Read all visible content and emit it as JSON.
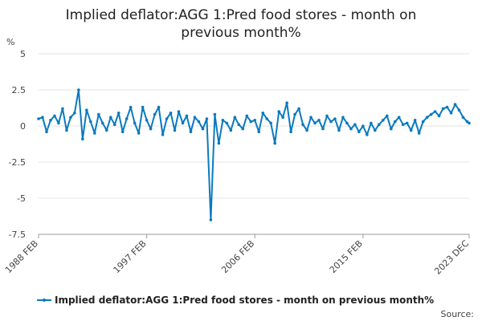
{
  "chart_data": {
    "type": "line",
    "title_lines": [
      "Implied deflator:AGG 1:Pred food stores - month on",
      "previous month%"
    ],
    "ylabel": "%",
    "ylim": [
      -7.5,
      5
    ],
    "yticks": [
      5,
      2.5,
      0,
      -2.5,
      -5,
      -7.5
    ],
    "ytick_labels": [
      "5",
      "2.5",
      "0",
      "-2.5",
      "-5",
      "-7.5"
    ],
    "xlim": [
      "1988 FEB",
      "2023 DEC"
    ],
    "xtick_labels": [
      "1988 FEB",
      "1997 FEB",
      "2006 FEB",
      "2015 FEB",
      "2023 DEC"
    ],
    "grid": true,
    "legend_position": "bottom",
    "series": [
      {
        "name": "Implied deflator:AGG 1:Pred food stores - month on previous month%",
        "color": "#0a7abf",
        "x": [
          "1988 FEB",
          "1988 JUN",
          "1988 OCT",
          "1989 FEB",
          "1989 JUN",
          "1989 OCT",
          "1990 FEB",
          "1990 JUN",
          "1990 OCT",
          "1991 FEB",
          "1991 JUN",
          "1991 OCT",
          "1992 FEB",
          "1992 JUN",
          "1992 OCT",
          "1993 FEB",
          "1993 JUN",
          "1993 OCT",
          "1994 FEB",
          "1994 JUN",
          "1994 OCT",
          "1995 FEB",
          "1995 JUN",
          "1995 OCT",
          "1996 FEB",
          "1996 JUN",
          "1996 OCT",
          "1997 FEB",
          "1997 JUN",
          "1997 OCT",
          "1998 FEB",
          "1998 JUN",
          "1998 OCT",
          "1999 FEB",
          "1999 JUN",
          "1999 OCT",
          "2000 FEB",
          "2000 JUN",
          "2000 OCT",
          "2001 FEB",
          "2001 JUN",
          "2001 OCT",
          "2002 FEB",
          "2002 JUN",
          "2002 OCT",
          "2003 FEB",
          "2003 JUN",
          "2003 OCT",
          "2004 FEB",
          "2004 JUN",
          "2004 OCT",
          "2005 FEB",
          "2005 JUN",
          "2005 OCT",
          "2006 FEB",
          "2006 JUN",
          "2006 OCT",
          "2007 FEB",
          "2007 JUN",
          "2007 OCT",
          "2008 FEB",
          "2008 JUN",
          "2008 OCT",
          "2009 FEB",
          "2009 JUN",
          "2009 OCT",
          "2010 FEB",
          "2010 JUN",
          "2010 OCT",
          "2011 FEB",
          "2011 JUN",
          "2011 OCT",
          "2012 FEB",
          "2012 JUN",
          "2012 OCT",
          "2013 FEB",
          "2013 JUN",
          "2013 OCT",
          "2014 FEB",
          "2014 JUN",
          "2014 OCT",
          "2015 FEB",
          "2015 JUN",
          "2015 OCT",
          "2016 FEB",
          "2016 JUN",
          "2016 OCT",
          "2017 FEB",
          "2017 JUN",
          "2017 OCT",
          "2018 FEB",
          "2018 JUN",
          "2018 OCT",
          "2019 FEB",
          "2019 JUN",
          "2019 OCT",
          "2020 FEB",
          "2020 JUN",
          "2020 OCT",
          "2021 FEB",
          "2021 JUN",
          "2021 OCT",
          "2022 FEB",
          "2022 JUN",
          "2022 OCT",
          "2023 FEB",
          "2023 JUN",
          "2023 OCT",
          "2023 DEC"
        ],
        "values": [
          0.5,
          0.6,
          -0.4,
          0.4,
          0.7,
          0.2,
          1.2,
          -0.3,
          0.6,
          0.9,
          2.5,
          -0.9,
          1.1,
          0.3,
          -0.5,
          0.8,
          0.2,
          -0.3,
          0.6,
          0.1,
          0.9,
          -0.4,
          0.5,
          1.3,
          0.2,
          -0.5,
          1.3,
          0.4,
          -0.2,
          0.8,
          1.3,
          -0.6,
          0.5,
          0.9,
          -0.3,
          1.0,
          0.2,
          0.7,
          -0.4,
          0.6,
          0.3,
          -0.2,
          0.5,
          -6.5,
          0.8,
          -1.2,
          0.4,
          0.2,
          -0.3,
          0.6,
          0.1,
          -0.2,
          0.7,
          0.3,
          0.4,
          -0.4,
          0.9,
          0.5,
          0.2,
          -1.2,
          1.0,
          0.6,
          1.6,
          -0.4,
          0.8,
          1.2,
          0.1,
          -0.3,
          0.6,
          0.2,
          0.4,
          -0.2,
          0.7,
          0.3,
          0.5,
          -0.3,
          0.6,
          0.2,
          -0.2,
          0.1,
          -0.4,
          0.0,
          -0.6,
          0.2,
          -0.3,
          0.1,
          0.4,
          0.7,
          -0.2,
          0.3,
          0.6,
          0.1,
          0.2,
          -0.3,
          0.4,
          -0.5,
          0.3,
          0.6,
          0.8,
          1.0,
          0.7,
          1.2,
          1.3,
          0.9,
          1.5,
          1.1,
          0.6,
          0.3,
          0.2
        ]
      }
    ],
    "source_label": "Source:"
  }
}
